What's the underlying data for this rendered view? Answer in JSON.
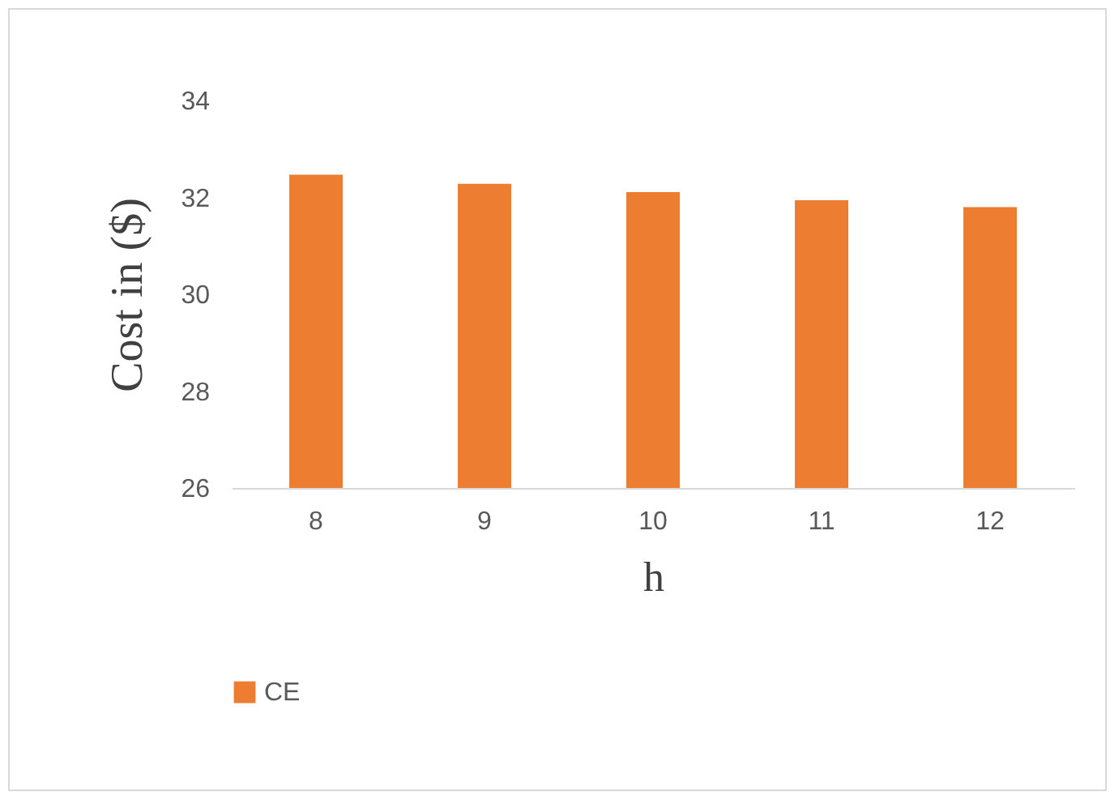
{
  "chart_data": {
    "type": "bar",
    "xlabel": "h",
    "ylabel": "Cost in ($)",
    "categories": [
      "8",
      "9",
      "10",
      "11",
      "12"
    ],
    "series": [
      {
        "name": "CE",
        "color": "#ed7d31",
        "values": [
          32.47,
          32.28,
          32.11,
          31.94,
          31.8
        ]
      }
    ],
    "ylim": [
      26,
      34
    ],
    "yticks": [
      26,
      28,
      30,
      32,
      34
    ],
    "grid": false,
    "legend": "bottom"
  }
}
